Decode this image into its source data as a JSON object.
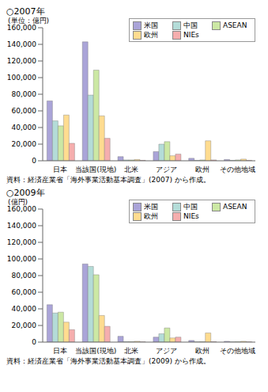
{
  "chart_data": [
    {
      "type": "bar",
      "title": "○2007年",
      "y_label": "(単位：億円)",
      "annotation": "資料：経済産業省「海外事業活動基本調査」(2007) から作成。",
      "categories": [
        "日本",
        "当該国(現地)",
        "北米",
        "アジア",
        "欧州",
        "その他地域"
      ],
      "series": [
        {
          "name": "米国",
          "color": "#aaa4d8",
          "values": [
            72000,
            143000,
            5000,
            11000,
            3000,
            1500
          ]
        },
        {
          "name": "中国",
          "color": "#b4dcd8",
          "values": [
            48000,
            79000,
            1000,
            20000,
            500,
            500
          ]
        },
        {
          "name": "ASEAN",
          "color": "#cce8a4",
          "values": [
            42000,
            109000,
            1000,
            23000,
            1000,
            1000
          ]
        },
        {
          "name": "欧州",
          "color": "#ffdc90",
          "values": [
            55000,
            54000,
            1500,
            6000,
            24000,
            2000
          ]
        },
        {
          "name": "NIEs",
          "color": "#f5aeae",
          "values": [
            21000,
            27000,
            500,
            8000,
            1000,
            500
          ]
        }
      ],
      "ylim": [
        0,
        160000
      ],
      "yticks": [
        0,
        {
          "value": 20000,
          "label": "20,000"
        },
        {
          "value": 40000,
          "label": "40,000"
        },
        {
          "value": 60000,
          "label": "60,000"
        },
        {
          "value": 80000,
          "label": "80,000"
        },
        {
          "value": 100000,
          "label": "100,000"
        },
        {
          "value": 120000,
          "label": "120,000"
        },
        {
          "value": 140000,
          "label": "140,000"
        },
        {
          "value": 160000,
          "label": "160,000"
        }
      ],
      "grid": false,
      "legend": "top-right"
    },
    {
      "type": "bar",
      "title": "○2009年",
      "y_label": "(億円)",
      "annotation": "資料：経済産業省「海外事業活動基本調査」(2009) から作成。",
      "categories": [
        "日本",
        "当該国(現地)",
        "北米",
        "アジア",
        "欧州",
        "その他地域"
      ],
      "series": [
        {
          "name": "米国",
          "color": "#aaa4d8",
          "values": [
            45000,
            94000,
            7000,
            6000,
            2000,
            1000
          ]
        },
        {
          "name": "中国",
          "color": "#b4dcd8",
          "values": [
            35000,
            91000,
            500,
            10000,
            300,
            300
          ]
        },
        {
          "name": "ASEAN",
          "color": "#cce8a4",
          "values": [
            36000,
            81000,
            500,
            17000,
            500,
            500
          ]
        },
        {
          "name": "欧州",
          "color": "#ffdc90",
          "values": [
            24000,
            32000,
            1000,
            5000,
            11000,
            1000
          ]
        },
        {
          "name": "NIEs",
          "color": "#f5aeae",
          "values": [
            15000,
            19000,
            300,
            6000,
            500,
            300
          ]
        }
      ],
      "ylim": [
        0,
        160000
      ],
      "yticks": [
        0,
        {
          "value": 20000,
          "label": "20,000"
        },
        {
          "value": 40000,
          "label": "40,000"
        },
        {
          "value": 60000,
          "label": "60,000"
        },
        {
          "value": 80000,
          "label": "80,000"
        },
        {
          "value": 100000,
          "label": "100,000"
        },
        {
          "value": 120000,
          "label": "120,000"
        },
        {
          "value": 140000,
          "label": "140,000"
        },
        {
          "value": 160000,
          "label": "160,000"
        }
      ],
      "grid": false,
      "legend": "top-right"
    }
  ]
}
